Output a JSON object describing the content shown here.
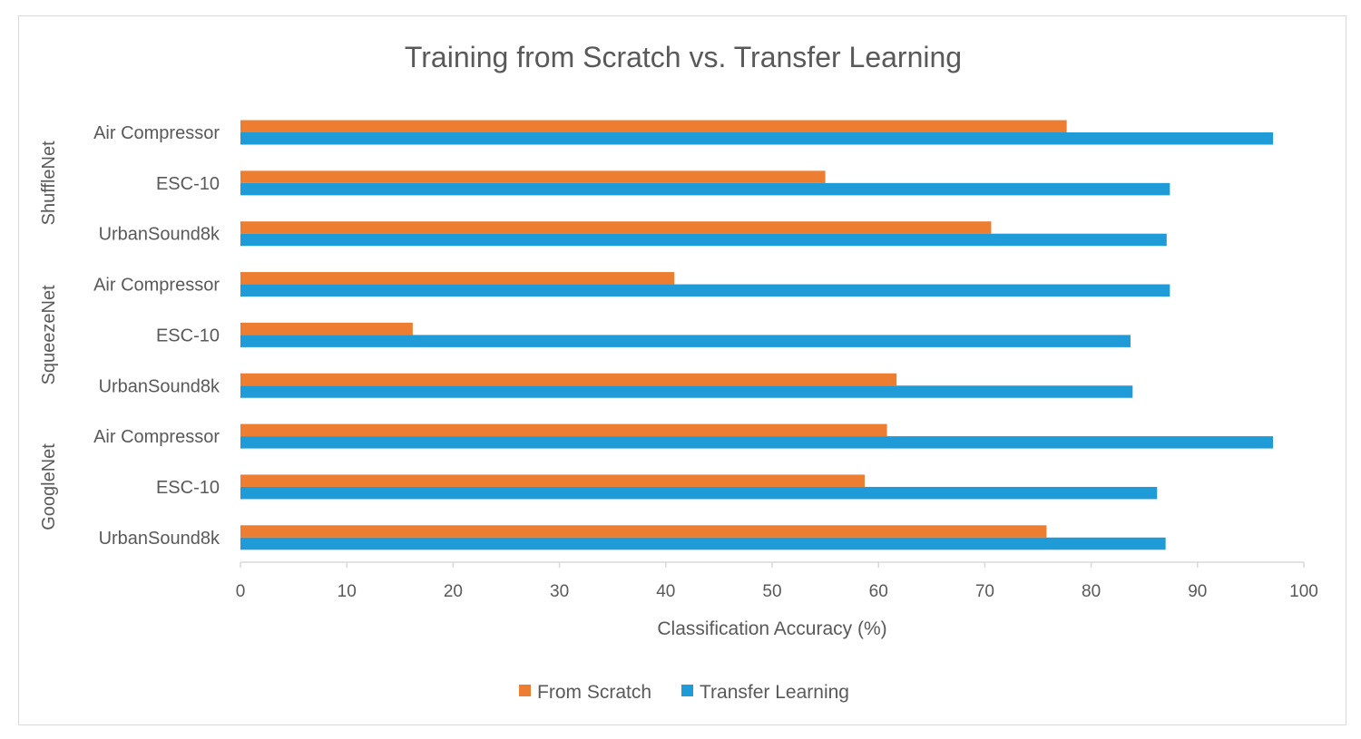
{
  "chart_data": {
    "type": "bar",
    "orientation": "horizontal",
    "title": "Training from Scratch vs. Transfer Learning",
    "xlabel": "Classification Accuracy (%)",
    "ylabel": "",
    "xlim": [
      0,
      100
    ],
    "xticks": [
      0,
      10,
      20,
      30,
      40,
      50,
      60,
      70,
      80,
      90,
      100
    ],
    "grid": false,
    "legend_position": "bottom",
    "groups": [
      {
        "name": "ShuffleNet",
        "categories": [
          "Air Compressor",
          "ESC-10",
          "UrbanSound8k"
        ]
      },
      {
        "name": "SqueezeNet",
        "categories": [
          "Air Compressor",
          "ESC-10",
          "UrbanSound8k"
        ]
      },
      {
        "name": "GoogleNet",
        "categories": [
          "Air Compressor",
          "ESC-10",
          "UrbanSound8k"
        ]
      }
    ],
    "series": [
      {
        "name": "From Scratch",
        "color": "#ed7d31",
        "values": [
          77.7,
          55.0,
          70.6,
          40.8,
          16.2,
          61.7,
          60.8,
          58.7,
          75.8
        ]
      },
      {
        "name": "Transfer Learning",
        "color": "#1f9bd7",
        "values": [
          97.1,
          87.4,
          87.1,
          87.4,
          83.7,
          83.9,
          97.1,
          86.2,
          87.0
        ]
      }
    ]
  }
}
